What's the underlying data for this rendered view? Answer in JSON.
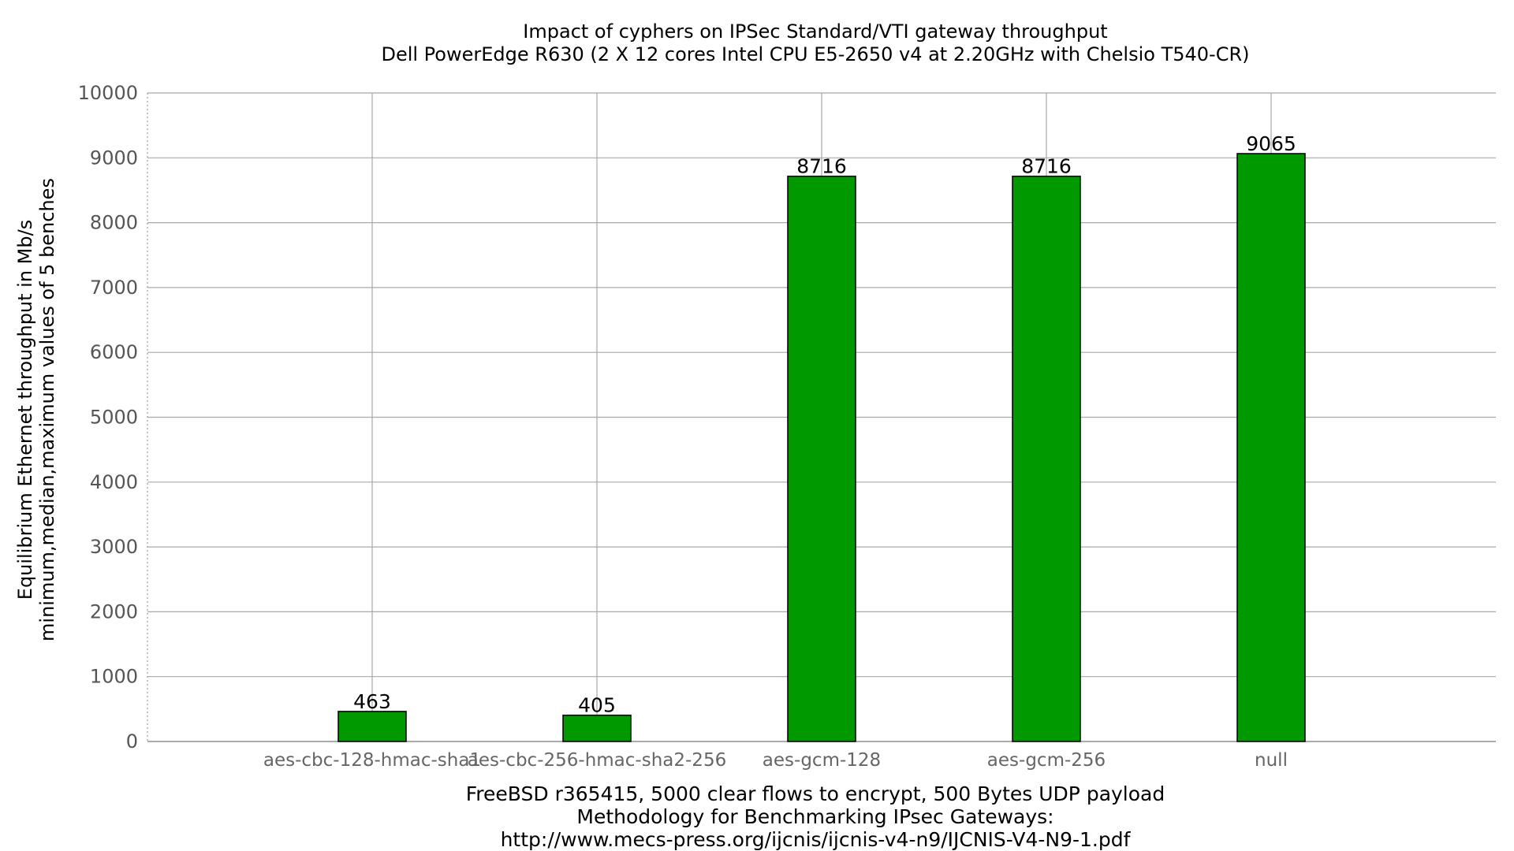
{
  "chart_data": {
    "type": "bar",
    "title": "Impact of cyphers on IPSec Standard/VTI gateway throughput",
    "subtitle": "Dell PowerEdge R630 (2 X 12 cores Intel CPU E5-2650 v4 at 2.20GHz with Chelsio T540-CR)",
    "ylabel": [
      "Equilibrium Ethernet throughput in Mb/s",
      "minimum,median,maximum values of 5 benches"
    ],
    "xlabel": [
      "FreeBSD r365415, 5000 clear flows to encrypt, 500 Bytes UDP payload",
      "Methodology for Benchmarking IPsec Gateways:",
      "http://www.mecs-press.org/ijcnis/ijcnis-v4-n9/IJCNIS-V4-N9-1.pdf"
    ],
    "categories": [
      "aes-cbc-128-hmac-sha1",
      "aes-cbc-256-hmac-sha2-256",
      "aes-gcm-128",
      "aes-gcm-256",
      "null"
    ],
    "values": [
      463,
      405,
      8716,
      8716,
      9065
    ],
    "data_labels": [
      "463",
      "405",
      "8716",
      "8716",
      "9065"
    ],
    "ylim": [
      0,
      10000
    ],
    "yticks": [
      0,
      1000,
      2000,
      3000,
      4000,
      5000,
      6000,
      7000,
      8000,
      9000,
      10000
    ],
    "ytick_labels": [
      "0",
      "1000",
      "2000",
      "3000",
      "4000",
      "5000",
      "6000",
      "7000",
      "8000",
      "9000",
      "10000"
    ],
    "grid": true,
    "bar_color": "#009900"
  }
}
